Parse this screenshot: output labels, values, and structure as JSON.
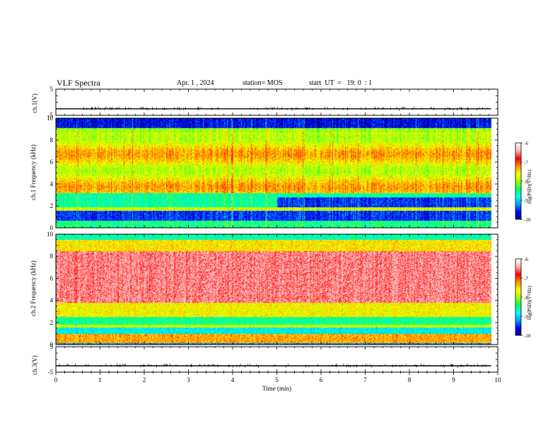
{
  "header": {
    "title": "VLF Spectra",
    "date": "Apr. 1 , 2024",
    "station": "station= MOS",
    "start": "start  UT  =   19: 0  : 1"
  },
  "colors": {
    "colormap": [
      "#000080",
      "#0000ff",
      "#00a0ff",
      "#00ffff",
      "#00ff60",
      "#a0ff00",
      "#ffff00",
      "#ff9000",
      "#ff0000",
      "#ffb0b0",
      "#ffffff"
    ]
  },
  "chart_data": [
    {
      "type": "line",
      "id": "ch1-waveform",
      "ylabel": "ch.1(V)",
      "ylim": [
        -5,
        5
      ],
      "yticks": [
        "5",
        "-5"
      ],
      "series": [
        {
          "x": [
            0,
            9.85
          ],
          "values": [
            -2.5,
            -2.5
          ]
        }
      ]
    },
    {
      "type": "heatmap",
      "id": "ch1-spectrogram",
      "ylabel": "ch.1 Frequency  (kHz)",
      "yticks": [
        "0",
        "2",
        "4",
        "6",
        "8",
        "10"
      ],
      "ylim": [
        0,
        10
      ],
      "xlim": [
        0,
        10
      ],
      "data_end": 9.85,
      "colorbar": {
        "label": "log(PSD)(V²/Hz)",
        "ticks": [
          "-6",
          "-7",
          "-8",
          "-9",
          "-10"
        ],
        "range": [
          -10,
          -6
        ]
      }
    },
    {
      "type": "heatmap",
      "id": "ch2-spectrogram",
      "ylabel": "ch.2 Frequency  (kHz)",
      "yticks": [
        "0",
        "2",
        "4",
        "6",
        "8",
        "10"
      ],
      "ylim": [
        0,
        10
      ],
      "xlim": [
        0,
        10
      ],
      "data_end": 9.85,
      "colorbar": {
        "label": "log(PSD)(V²/Hz)",
        "ticks": [
          "-6",
          "-7",
          "-8",
          "-9",
          "-10"
        ],
        "range": [
          -10,
          -6
        ]
      }
    },
    {
      "type": "line",
      "id": "ch3-waveform",
      "ylabel": "ch.3(V)",
      "ylim": [
        -5,
        5
      ],
      "yticks": [
        "5",
        "-5"
      ],
      "xlabel": "Time  (min)",
      "xticks": [
        "0",
        "1",
        "2",
        "3",
        "4",
        "5",
        "6",
        "7",
        "8",
        "9",
        "10"
      ],
      "xlim": [
        0,
        10
      ],
      "series": [
        {
          "x": [
            0,
            9.85
          ],
          "values": [
            -2.5,
            -2.5
          ]
        }
      ]
    }
  ]
}
